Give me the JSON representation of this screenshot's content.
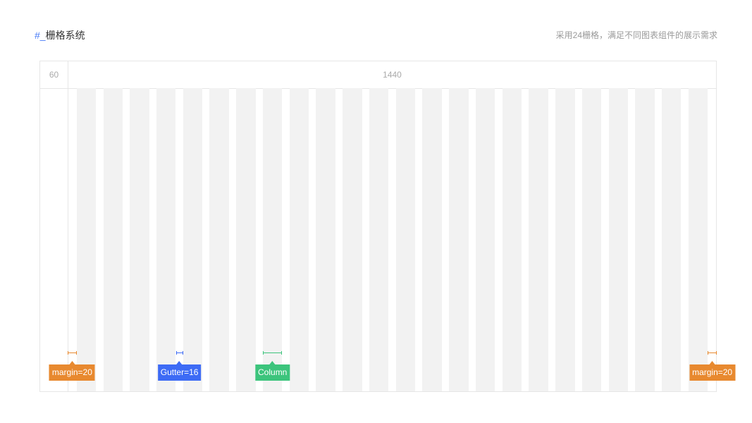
{
  "header": {
    "hash": "#_",
    "title": "栅格系统",
    "subtitle": "采用24栅格，满足不同图表组件的展示需求"
  },
  "grid": {
    "side_label": "60",
    "total_label": "1440",
    "columns": 24,
    "total": 1440,
    "margin": 20,
    "gutter": 16
  },
  "annotations": [
    {
      "label": "margin=20",
      "color": "#E8892F"
    },
    {
      "label": "Gutter=16",
      "color": "#3D6BF5"
    },
    {
      "label": "Column",
      "color": "#3CC47C"
    },
    {
      "label": "margin=20",
      "color": "#E8892F"
    }
  ]
}
